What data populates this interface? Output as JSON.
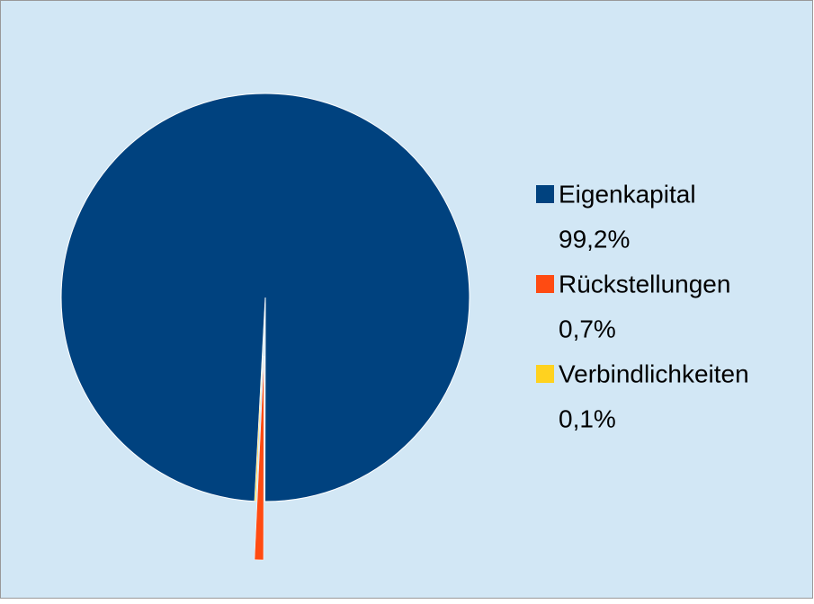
{
  "chart_data": {
    "type": "pie",
    "categories": [
      "Eigenkapital",
      "Rückstellungen",
      "Verbindlichkeiten"
    ],
    "values": [
      99.2,
      0.7,
      0.1
    ],
    "value_labels": [
      "99,2%",
      "0,7%",
      "0,1%"
    ],
    "colors": [
      "#00427f",
      "#ff4b12",
      "#ffd21f"
    ],
    "legend": "right"
  }
}
